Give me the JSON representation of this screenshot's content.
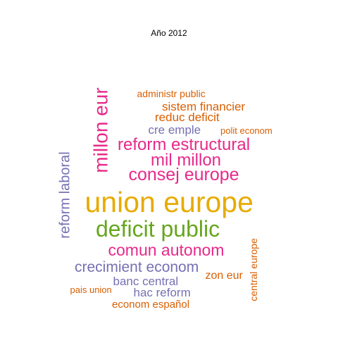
{
  "title": "Año 2012",
  "colors": {
    "orange": "#d95f02",
    "purple": "#7570b3",
    "magenta": "#e7298a",
    "green": "#66a61e",
    "gold": "#e6ab02"
  },
  "words": [
    {
      "text": "union europe",
      "color": "#e6ab02",
      "weight": 100,
      "rotated": false
    },
    {
      "text": "deficit public",
      "color": "#66a61e",
      "weight": 78,
      "rotated": false
    },
    {
      "text": "consej europe",
      "color": "#e7298a",
      "weight": 55,
      "rotated": false
    },
    {
      "text": "comun autonom",
      "color": "#e7298a",
      "weight": 50,
      "rotated": false
    },
    {
      "text": "reform estructural",
      "color": "#e7298a",
      "weight": 48,
      "rotated": false
    },
    {
      "text": "mil millon",
      "color": "#e7298a",
      "weight": 48,
      "rotated": false
    },
    {
      "text": "millon eur",
      "color": "#e7298a",
      "weight": 52,
      "rotated": true
    },
    {
      "text": "crecimient econom",
      "color": "#7570b3",
      "weight": 45,
      "rotated": false
    },
    {
      "text": "reform laboral",
      "color": "#7570b3",
      "weight": 42,
      "rotated": true
    },
    {
      "text": "sistem financier",
      "color": "#d95f02",
      "weight": 38,
      "rotated": false
    },
    {
      "text": "reduc deficit",
      "color": "#d95f02",
      "weight": 36,
      "rotated": false
    },
    {
      "text": "cre emple",
      "color": "#7570b3",
      "weight": 36,
      "rotated": false
    },
    {
      "text": "banc central",
      "color": "#7570b3",
      "weight": 36,
      "rotated": false
    },
    {
      "text": "hac reform",
      "color": "#7570b3",
      "weight": 36,
      "rotated": false
    },
    {
      "text": "zon eur",
      "color": "#d95f02",
      "weight": 35,
      "rotated": false
    },
    {
      "text": "administr public",
      "color": "#d95f02",
      "weight": 30,
      "rotated": false
    },
    {
      "text": "econom español",
      "color": "#d95f02",
      "weight": 32,
      "rotated": false
    },
    {
      "text": "central europe",
      "color": "#d95f02",
      "weight": 30,
      "rotated": true
    },
    {
      "text": "polit econom",
      "color": "#d95f02",
      "weight": 26,
      "rotated": false
    },
    {
      "text": "pais union",
      "color": "#d95f02",
      "weight": 26,
      "rotated": false
    }
  ]
}
